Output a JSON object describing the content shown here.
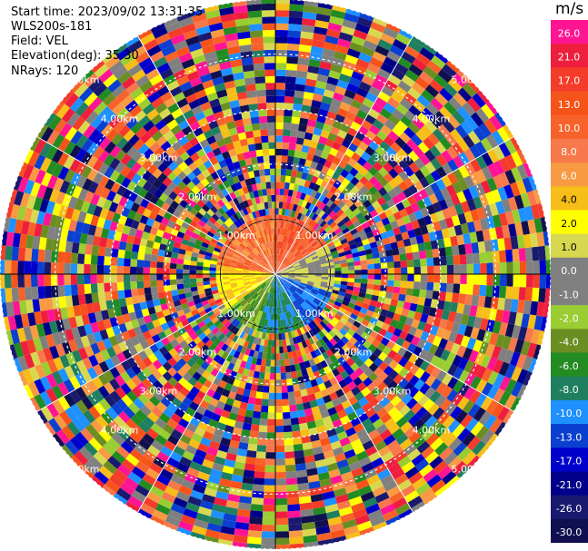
{
  "info": {
    "start_time": "Start time: 2023/09/02 13:31:35",
    "instrument": "WLS200s-181",
    "field": "Field: VEL",
    "elevation": "Elevation(deg): 35.30",
    "nrays": "NRays: 120"
  },
  "chart_data": {
    "type": "ppi-polar-scan",
    "field": "VEL",
    "unit": "m/s",
    "nrays": 120,
    "elevation_deg": 35.3,
    "range_ring_labels": [
      "1.00km",
      "2.00km",
      "3.00km",
      "4.00km",
      "5.00km"
    ],
    "range_ring_km": [
      1,
      2,
      3,
      4,
      5
    ],
    "max_range_km": 5,
    "colorbar": {
      "label": "m/s",
      "ticks": [
        "26.0",
        "21.0",
        "17.0",
        "13.0",
        "10.0",
        "8.0",
        "6.0",
        "4.0",
        "2.0",
        "1.0",
        "0.0",
        "-1.0",
        "-2.0",
        "-4.0",
        "-6.0",
        "-8.0",
        "-10.0",
        "-13.0",
        "-17.0",
        "-21.0",
        "-26.0",
        "-30.0"
      ],
      "colors": [
        "#ff1493",
        "#ee1f3d",
        "#f43c2a",
        "#f6531a",
        "#f7622a",
        "#f7784a",
        "#f79a42",
        "#f7bd18",
        "#ffff00",
        "#d8d850",
        "#808080",
        "#808080",
        "#9acd32",
        "#6b8e23",
        "#228b22",
        "#1f7f5f",
        "#1e90ff",
        "#0a3fd0",
        "#0000cd",
        "#00008b",
        "#191970",
        "#101050"
      ]
    },
    "near_field_summary": {
      "range_km": [
        0,
        1
      ],
      "upper_left_sector": "positive (8 to 17 m/s)",
      "right_sector": "near zero",
      "lower_sector": "negative (-4 to -10 m/s)",
      "left_sector": "slightly positive (1 to 4 m/s)"
    },
    "far_field": "noise beyond 1 km, all colors"
  }
}
